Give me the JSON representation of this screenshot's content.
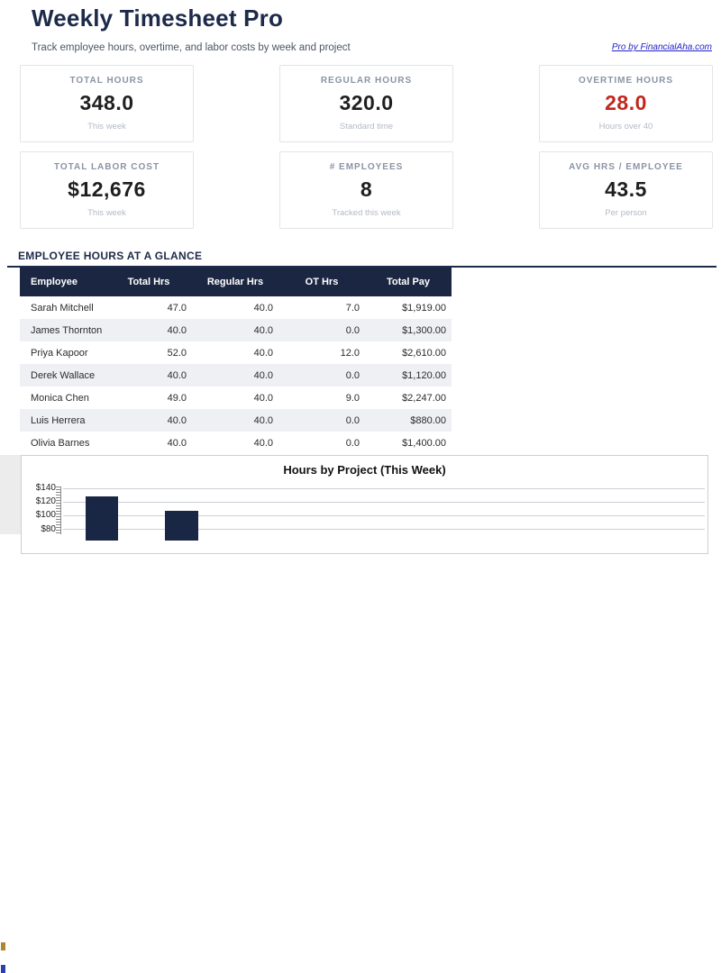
{
  "header": {
    "title": "Weekly Timesheet Pro",
    "subtitle": "Track employee hours, overtime, and labor costs by week and project",
    "link_label": "Pro by FinancialAha.com"
  },
  "stats": [
    {
      "label": "TOTAL HOURS",
      "value": "348.0",
      "sub": "This week"
    },
    {
      "label": "REGULAR HOURS",
      "value": "320.0",
      "sub": "Standard time"
    },
    {
      "label": "OVERTIME HOURS",
      "value": "28.0",
      "sub": "Hours over 40"
    },
    {
      "label": "TOTAL LABOR COST",
      "value": "$12,676",
      "sub": "This week"
    },
    {
      "label": "# EMPLOYEES",
      "value": "8",
      "sub": "Tracked this week"
    },
    {
      "label": "AVG HRS / EMPLOYEE",
      "value": "43.5",
      "sub": "Per person"
    }
  ],
  "table": {
    "section_title": "EMPLOYEE HOURS AT A GLANCE",
    "columns": [
      "Employee",
      "Total Hrs",
      "Regular Hrs",
      "OT Hrs",
      "Total Pay"
    ],
    "rows": [
      [
        "Sarah Mitchell",
        "47.0",
        "40.0",
        "7.0",
        "$1,919.00"
      ],
      [
        "James Thornton",
        "40.0",
        "40.0",
        "0.0",
        "$1,300.00"
      ],
      [
        "Priya Kapoor",
        "52.0",
        "40.0",
        "12.0",
        "$2,610.00"
      ],
      [
        "Derek Wallace",
        "40.0",
        "40.0",
        "0.0",
        "$1,120.00"
      ],
      [
        "Monica Chen",
        "49.0",
        "40.0",
        "9.0",
        "$2,247.00"
      ],
      [
        "Luis Herrera",
        "40.0",
        "40.0",
        "0.0",
        "$880.00"
      ],
      [
        "Olivia Barnes",
        "40.0",
        "40.0",
        "0.0",
        "$1,400.00"
      ]
    ]
  },
  "chart_data": {
    "type": "bar",
    "title": "Hours by Project (This Week)",
    "y_tick_labels": [
      "$140",
      "$120",
      "$100",
      "$80"
    ],
    "y_tick_values": [
      140,
      120,
      100,
      80
    ],
    "visible_values": [
      128,
      107
    ],
    "ylim_top": 140,
    "grid": true,
    "bar_color": "#1a2744"
  },
  "colors": {
    "accent_navy": "#1e2a4a",
    "table_header_navy": "#1b2742",
    "overtime_red": "#c0281e",
    "link_blue": "#2323cc",
    "row_stripe": "#eef0f4",
    "bar_navy": "#1a2744"
  }
}
